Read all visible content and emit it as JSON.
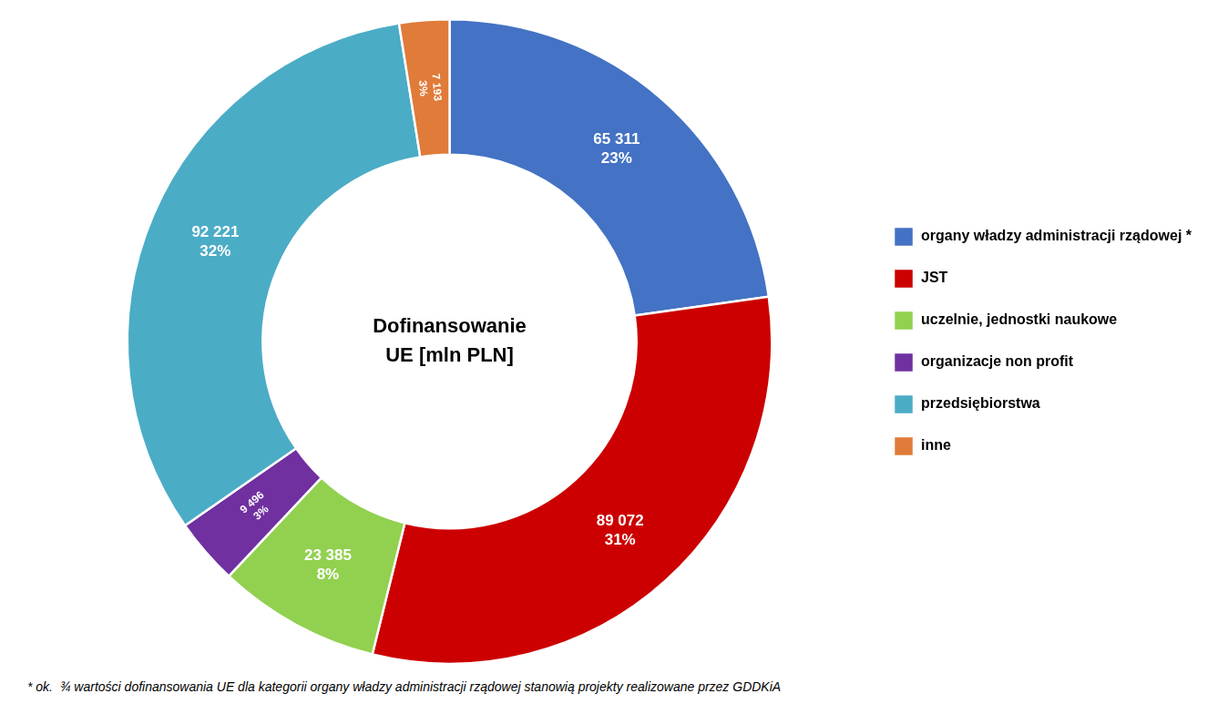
{
  "chart_data": {
    "type": "doughnut",
    "categories": [
      "organy władzy administracji rządowej *",
      "JST",
      "uczelnie, jednostki naukowe",
      "organizacje non profit",
      "przedsiębiorstwa",
      "inne"
    ],
    "values": [
      65311,
      89072,
      23385,
      9496,
      92221,
      7193
    ],
    "value_labels": [
      "65 311",
      "89 072",
      "23 385",
      "9 496",
      "92 221",
      "7 193"
    ],
    "percentages": [
      23,
      31,
      8,
      3,
      32,
      3
    ],
    "percentage_labels": [
      "23%",
      "31%",
      "8%",
      "3%",
      "32%",
      "3%"
    ],
    "colors": [
      "#4472C4",
      "#CC0000",
      "#92D050",
      "#7030A0",
      "#4BACC6",
      "#E07B39"
    ],
    "center_text": [
      "Dofinansowanie",
      "UE [mln PLN]"
    ],
    "footnote": "* ok.  ¾ wartości dofinansowania UE dla kategorii organy władzy administracji rządowej stanowią projekty realizowane przez GDDKiA",
    "legend": "right",
    "data_labels": true
  }
}
